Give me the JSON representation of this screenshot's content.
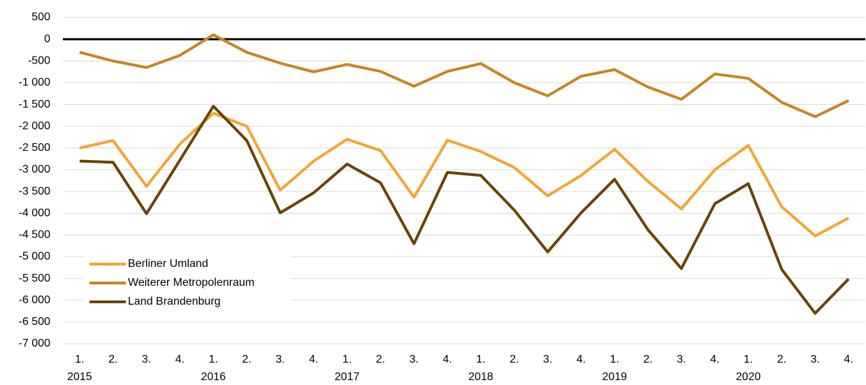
{
  "chart_data": {
    "type": "line",
    "categories": [
      "1.",
      "2.",
      "3.",
      "4.",
      "1.",
      "2.",
      "3.",
      "4.",
      "1.",
      "2.",
      "3.",
      "4.",
      "1.",
      "2.",
      "3.",
      "4.",
      "1.",
      "2.",
      "3.",
      "4.",
      "1.",
      "2.",
      "3.",
      "4."
    ],
    "years": [
      "2015",
      "2016",
      "2017",
      "2018",
      "2019",
      "2020"
    ],
    "series": [
      {
        "name": "Berliner Umland",
        "color": "#f5a431",
        "values": [
          -2500,
          -2330,
          -3380,
          -2410,
          -1700,
          -2000,
          -3470,
          -2800,
          -2300,
          -2560,
          -3630,
          -2320,
          -2580,
          -2950,
          -3600,
          -3130,
          -2530,
          -3270,
          -3900,
          -3000,
          -2440,
          -3850,
          -4520,
          -4110
        ]
      },
      {
        "name": "Weiterer Metropolenraum",
        "color": "#c98420",
        "values": [
          -300,
          -500,
          -650,
          -370,
          100,
          -300,
          -550,
          -750,
          -580,
          -740,
          -1080,
          -740,
          -560,
          -1000,
          -1300,
          -850,
          -700,
          -1100,
          -1380,
          -800,
          -900,
          -1450,
          -1780,
          -1410
        ]
      },
      {
        "name": "Land Brandenburg",
        "color": "#6b4205",
        "values": [
          -2800,
          -2830,
          -4010,
          -2780,
          -1540,
          -2330,
          -3990,
          -3530,
          -2870,
          -3300,
          -4700,
          -3060,
          -3130,
          -3930,
          -4890,
          -3990,
          -3220,
          -4380,
          -5270,
          -3780,
          -3320,
          -5290,
          -6300,
          -5510
        ]
      }
    ],
    "ylim": [
      -7000,
      500
    ],
    "yticks": [
      500,
      0,
      -500,
      {
        "value": -1000,
        "label": "-1 000"
      },
      {
        "value": -1500,
        "label": "-1 500"
      },
      {
        "value": -2000,
        "label": "-2 000"
      },
      {
        "value": -2500,
        "label": "-2 500"
      },
      {
        "value": -3000,
        "label": "-3 000"
      },
      {
        "value": -3500,
        "label": "-3 500"
      },
      {
        "value": -4000,
        "label": "-4 000"
      },
      {
        "value": -4500,
        "label": "-4 500"
      },
      {
        "value": -5000,
        "label": "-5 000"
      },
      {
        "value": -5500,
        "label": "-5 500"
      },
      {
        "value": -6000,
        "label": "-6 000"
      },
      {
        "value": -6500,
        "label": "-6 500"
      },
      {
        "value": -7000,
        "label": "-7 000"
      }
    ],
    "grid": true,
    "legend": "lower left"
  }
}
